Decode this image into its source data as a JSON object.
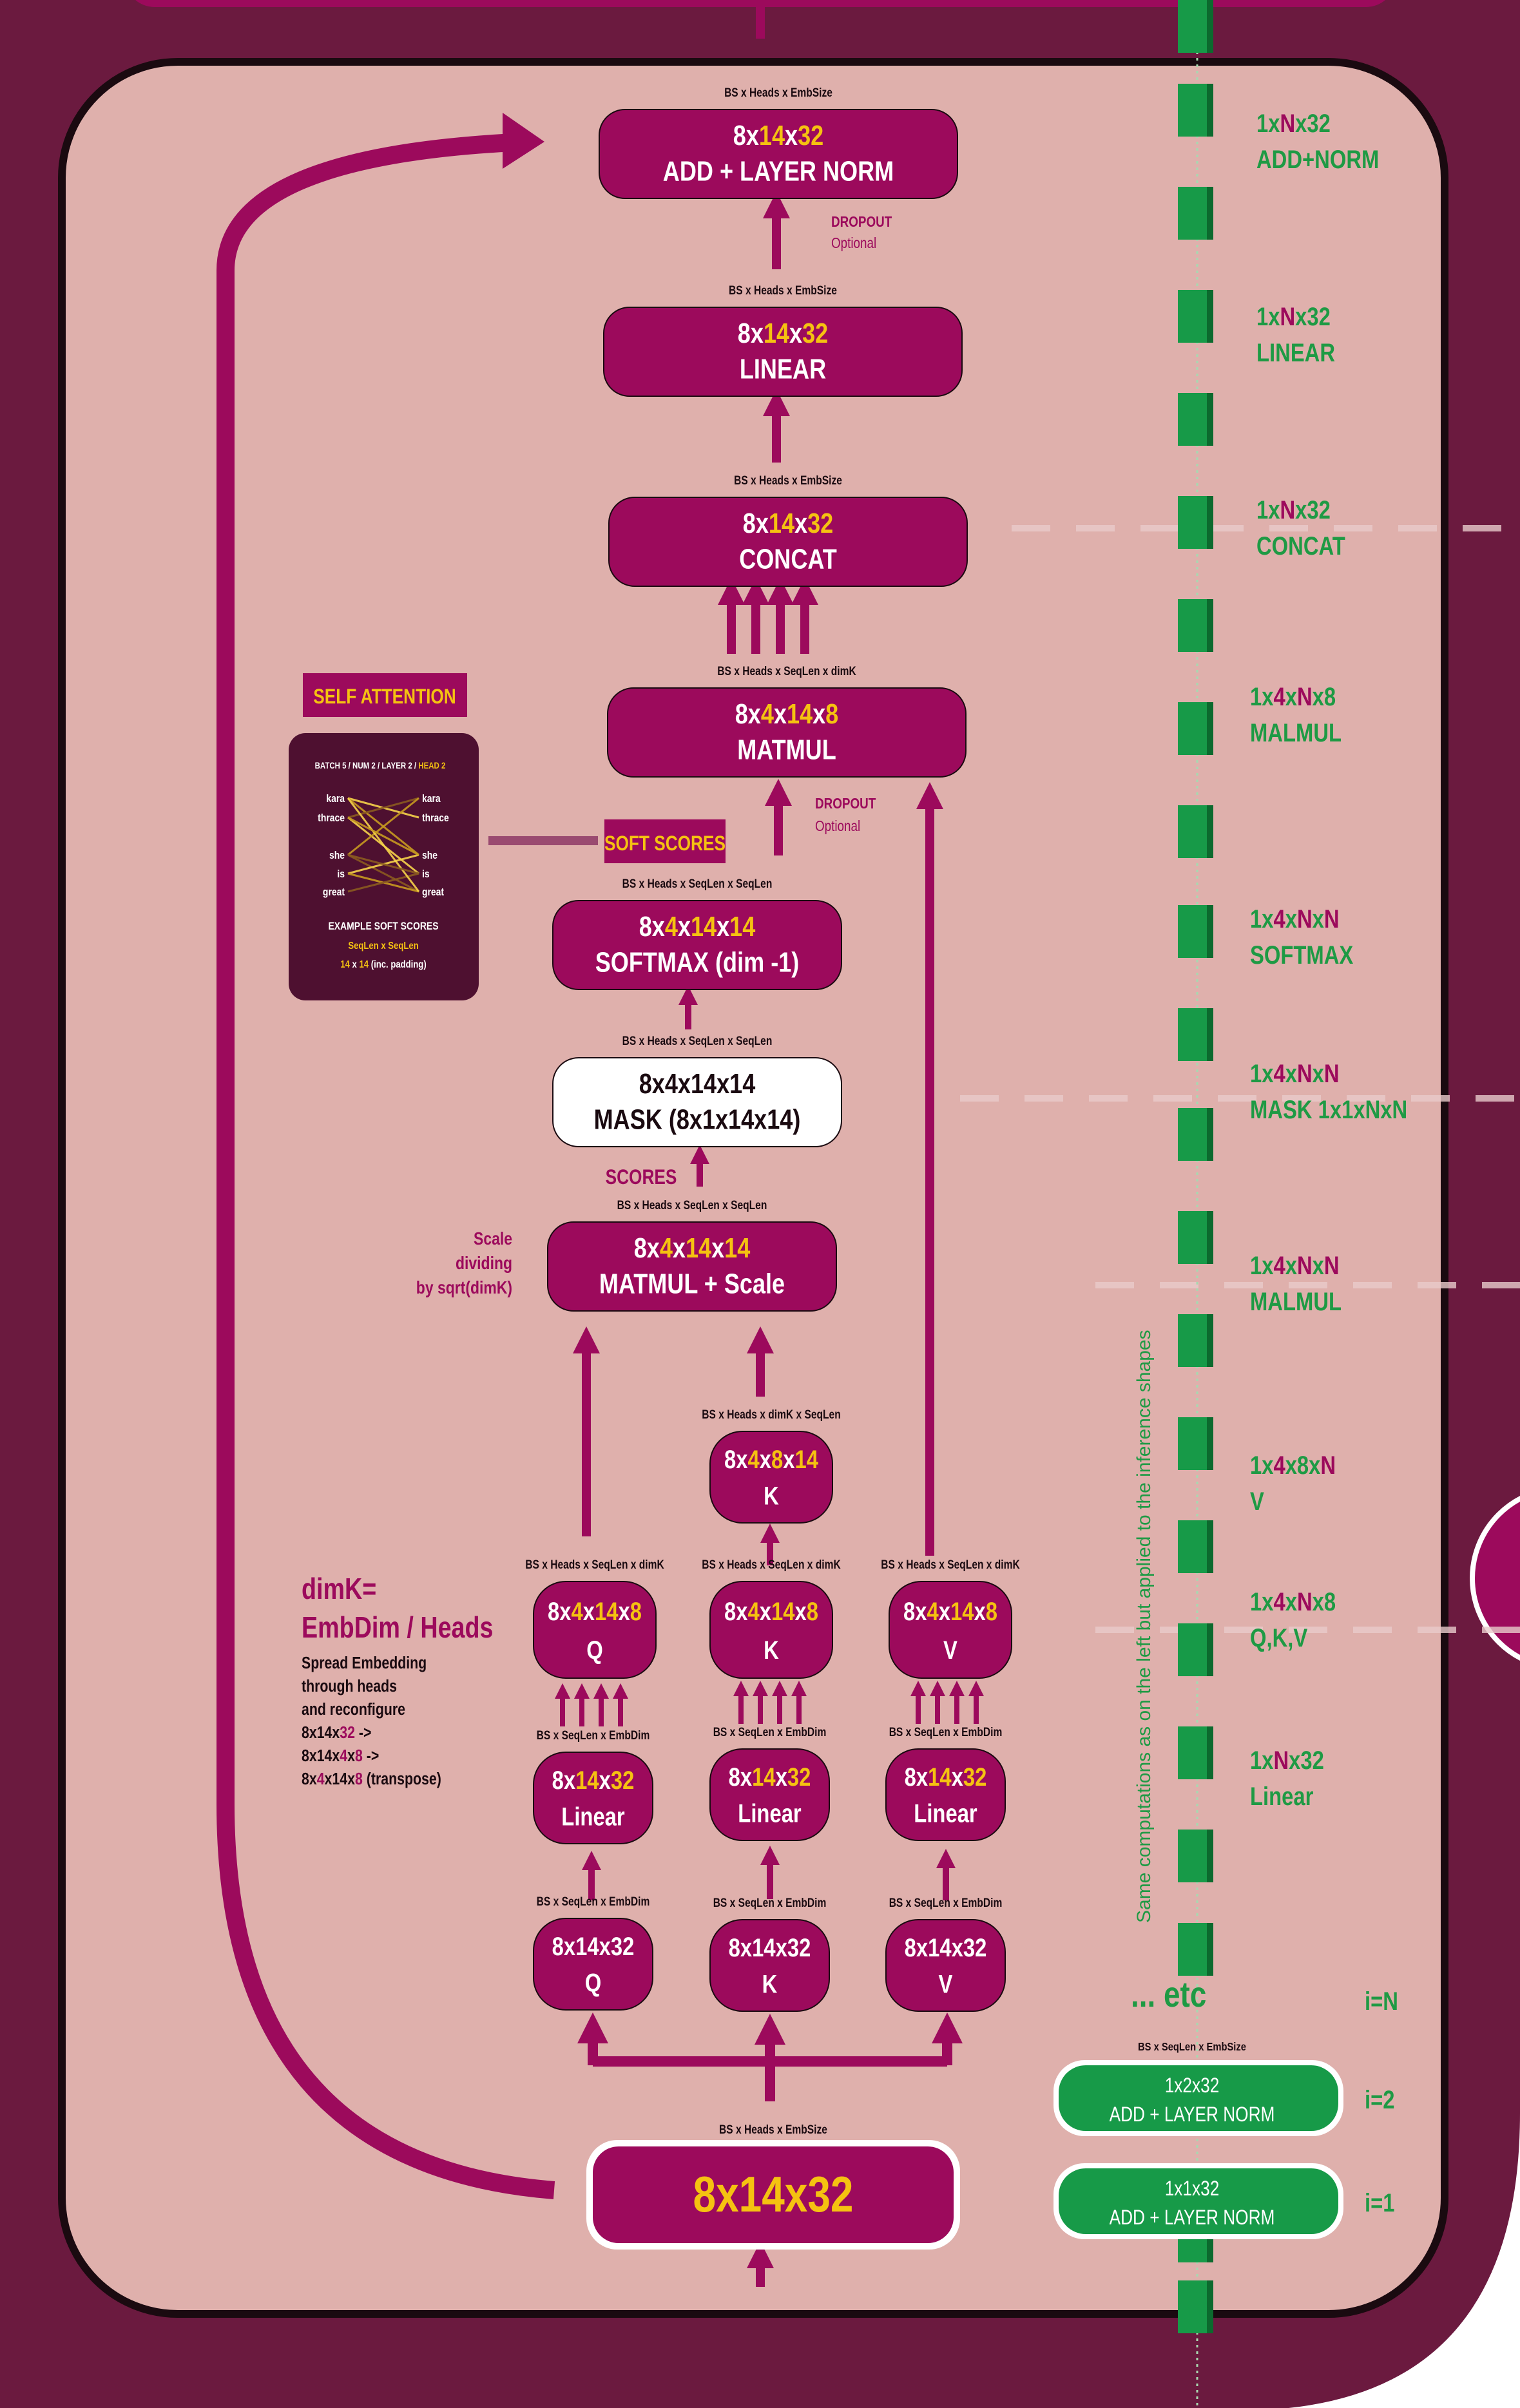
{
  "colors": {
    "outer": "#6b1a3f",
    "panel": "#dfb0ac",
    "block": "#9c0a5c",
    "accent": "#f5c211",
    "green": "#179a48",
    "greenText": "#1e9a44",
    "dark": "#4e1030",
    "white": "#ffffff"
  },
  "blocks": {
    "addnorm": {
      "dims": [
        [
          "8x",
          0
        ],
        [
          "14",
          1
        ],
        [
          "x",
          0
        ],
        [
          "32",
          1
        ]
      ],
      "name": "ADD + LAYER NORM",
      "shape": "BS x Heads x EmbSize"
    },
    "linear": {
      "dims": [
        [
          "8x",
          0
        ],
        [
          "14",
          1
        ],
        [
          "x",
          0
        ],
        [
          "32",
          1
        ]
      ],
      "name": "LINEAR",
      "shape": "BS x Heads x EmbSize"
    },
    "concat": {
      "dims": [
        [
          "8x",
          0
        ],
        [
          "14",
          1
        ],
        [
          "x",
          0
        ],
        [
          "32",
          1
        ]
      ],
      "name": "CONCAT",
      "shape": "BS x Heads x EmbSize"
    },
    "matmul": {
      "dims": [
        [
          "8x",
          0
        ],
        [
          "4",
          1
        ],
        [
          "x",
          0
        ],
        [
          "14",
          1
        ],
        [
          "x",
          0
        ],
        [
          "8",
          1
        ]
      ],
      "name": "MATMUL",
      "shape": "BS x Heads x SeqLen x dimK"
    },
    "softmax": {
      "dims": [
        [
          "8x",
          0
        ],
        [
          "4",
          1
        ],
        [
          "x",
          0
        ],
        [
          "14",
          1
        ],
        [
          "x",
          0
        ],
        [
          "14",
          1
        ]
      ],
      "name": "SOFTMAX (dim -1)",
      "shape": "BS x Heads x SeqLen x SeqLen"
    },
    "mask": {
      "dims": [
        [
          "8x4x14x14",
          0
        ]
      ],
      "name": "MASK (8x1x14x14)",
      "shape": "BS x Heads x SeqLen x SeqLen"
    },
    "scale": {
      "dims": [
        [
          "8x",
          0
        ],
        [
          "4",
          1
        ],
        [
          "x",
          0
        ],
        [
          "14",
          1
        ],
        [
          "x",
          0
        ],
        [
          "14",
          1
        ]
      ],
      "name": "MATMUL + Scale",
      "shape": "BS x Heads x SeqLen x SeqLen"
    },
    "kT": {
      "dims": [
        [
          "8x",
          0
        ],
        [
          "4",
          1
        ],
        [
          "x",
          0
        ],
        [
          "8",
          1
        ],
        [
          "x",
          0
        ],
        [
          "14",
          1
        ]
      ],
      "name": "K",
      "shape": "BS x Heads x dimK x SeqLen"
    },
    "q2": {
      "dims": [
        [
          "8x",
          0
        ],
        [
          "4",
          1
        ],
        [
          "x",
          0
        ],
        [
          "14",
          1
        ],
        [
          "x",
          0
        ],
        [
          "8",
          1
        ]
      ],
      "name": "Q",
      "shape": "BS x Heads x SeqLen x dimK"
    },
    "k2": {
      "dims": [
        [
          "8x",
          0
        ],
        [
          "4",
          1
        ],
        [
          "x",
          0
        ],
        [
          "14",
          1
        ],
        [
          "x",
          0
        ],
        [
          "8",
          1
        ]
      ],
      "name": "K",
      "shape": "BS x Heads x SeqLen x dimK"
    },
    "v2": {
      "dims": [
        [
          "8x",
          0
        ],
        [
          "4",
          1
        ],
        [
          "x",
          0
        ],
        [
          "14",
          1
        ],
        [
          "x",
          0
        ],
        [
          "8",
          1
        ]
      ],
      "name": "V",
      "shape": "BS x Heads x SeqLen x dimK"
    },
    "lq": {
      "dims": [
        [
          "8x",
          0
        ],
        [
          "14",
          1
        ],
        [
          "x",
          0
        ],
        [
          "32",
          1
        ]
      ],
      "name": "Linear",
      "shape": "BS x SeqLen x EmbDim"
    },
    "lk": {
      "dims": [
        [
          "8x",
          0
        ],
        [
          "14",
          1
        ],
        [
          "x",
          0
        ],
        [
          "32",
          1
        ]
      ],
      "name": "Linear",
      "shape": "BS x SeqLen x EmbDim"
    },
    "lv": {
      "dims": [
        [
          "8x",
          0
        ],
        [
          "14",
          1
        ],
        [
          "x",
          0
        ],
        [
          "32",
          1
        ]
      ],
      "name": "Linear",
      "shape": "BS x SeqLen x EmbDim"
    },
    "iq": {
      "dims": [
        [
          "8x14x32",
          0
        ]
      ],
      "name": "Q",
      "shape": "BS x SeqLen x EmbDim"
    },
    "ik": {
      "dims": [
        [
          "8x14x32",
          0
        ]
      ],
      "name": "K",
      "shape": "BS x SeqLen x EmbDim"
    },
    "iv": {
      "dims": [
        [
          "8x14x32",
          0
        ]
      ],
      "name": "V",
      "shape": "BS x SeqLen x EmbDim"
    },
    "input": {
      "dims": [
        [
          "8x14x32",
          1
        ]
      ],
      "name": "",
      "shape": "BS x Heads x EmbSize"
    }
  },
  "labels": {
    "dropout1": "DROPOUT",
    "optional1": "Optional",
    "dropout2": "DROPOUT",
    "optional2": "Optional",
    "scores": "SCORES",
    "softScores": "SOFT SCORES",
    "selfAttention": "SELF ATTENTION",
    "scaleNote": [
      "Scale",
      "dividing",
      "by sqrt(dimK)"
    ],
    "dimK": [
      "dimK=",
      "EmbDim / Heads"
    ],
    "spread": [
      "Spread Embedding",
      "through heads",
      "and reconfigure"
    ],
    "reshape": [
      [
        [
          "8x14x",
          0
        ],
        [
          "32",
          1
        ],
        [
          " ->",
          0
        ]
      ],
      [
        [
          "8x14x",
          0
        ],
        [
          "4",
          1
        ],
        [
          "x",
          0
        ],
        [
          "8",
          1
        ],
        [
          " ->",
          0
        ]
      ],
      [
        [
          "8x",
          0
        ],
        [
          "4",
          1
        ],
        [
          "x14x",
          0
        ],
        [
          "8",
          1
        ],
        [
          " (transpose)",
          0
        ]
      ]
    ]
  },
  "example": {
    "header": [
      [
        "BATCH 5 / NUM 2 / LAYER 2 / ",
        0
      ],
      [
        "HEAD 2",
        1
      ]
    ],
    "words": [
      "kara",
      "thrace",
      "",
      "she",
      "is",
      "great"
    ],
    "caption": "EXAMPLE SOFT SCORES",
    "sub": "SeqLen x SeqLen",
    "sub2": [
      [
        "14",
        1
      ],
      [
        " x ",
        0
      ],
      [
        "14",
        1
      ],
      [
        " (inc. padding)",
        0
      ]
    ]
  },
  "inference": {
    "rows": [
      {
        "dims": [
          [
            "1x",
            0
          ],
          [
            "N",
            1
          ],
          [
            "x32",
            0
          ]
        ],
        "name": "ADD+NORM"
      },
      {
        "dims": [
          [
            "1x",
            0
          ],
          [
            "N",
            1
          ],
          [
            "x32",
            0
          ]
        ],
        "name": "LINEAR"
      },
      {
        "dims": [
          [
            "1x",
            0
          ],
          [
            "N",
            1
          ],
          [
            "x32",
            0
          ]
        ],
        "name": "CONCAT"
      },
      {
        "dims": [
          [
            "1x",
            0
          ],
          [
            "4",
            1
          ],
          [
            "x",
            0
          ],
          [
            "N",
            1
          ],
          [
            "x8",
            0
          ]
        ],
        "name": "MALMUL"
      },
      {
        "dims": [
          [
            "1x",
            0
          ],
          [
            "4",
            1
          ],
          [
            "x",
            0
          ],
          [
            "N",
            1
          ],
          [
            "x",
            0
          ],
          [
            "N",
            1
          ]
        ],
        "name": "SOFTMAX"
      },
      {
        "dims": [
          [
            "1x",
            0
          ],
          [
            "4",
            1
          ],
          [
            "x",
            0
          ],
          [
            "N",
            1
          ],
          [
            "x",
            0
          ],
          [
            "N",
            1
          ]
        ],
        "name": "MASK 1x1xNxN"
      },
      {
        "dims": [
          [
            "1x",
            0
          ],
          [
            "4",
            1
          ],
          [
            "x",
            0
          ],
          [
            "N",
            1
          ],
          [
            "x",
            0
          ],
          [
            "N",
            1
          ]
        ],
        "name": "MALMUL"
      },
      {
        "dims": [
          [
            "1x",
            0
          ],
          [
            "4",
            1
          ],
          [
            "x8x",
            0
          ],
          [
            "N",
            1
          ]
        ],
        "name": "V"
      },
      {
        "dims": [
          [
            "1x",
            0
          ],
          [
            "4",
            1
          ],
          [
            "x",
            0
          ],
          [
            "N",
            1
          ],
          [
            "x8",
            0
          ]
        ],
        "name": "Q,K,V"
      },
      {
        "dims": [
          [
            "1x",
            0
          ],
          [
            "N",
            1
          ],
          [
            "x32",
            0
          ]
        ],
        "name": "Linear"
      }
    ],
    "vertical": "Same computations as on the left but applied to the inference shapes",
    "etc": "... etc",
    "iN": "i=N",
    "shape": "BS x SeqLen x EmbSize",
    "steps": [
      {
        "dims": "1x2x32",
        "name": "ADD + LAYER NORM",
        "i": "i=2"
      },
      {
        "dims": "1x1x32",
        "name": "ADD + LAYER NORM",
        "i": "i=1"
      }
    ]
  }
}
